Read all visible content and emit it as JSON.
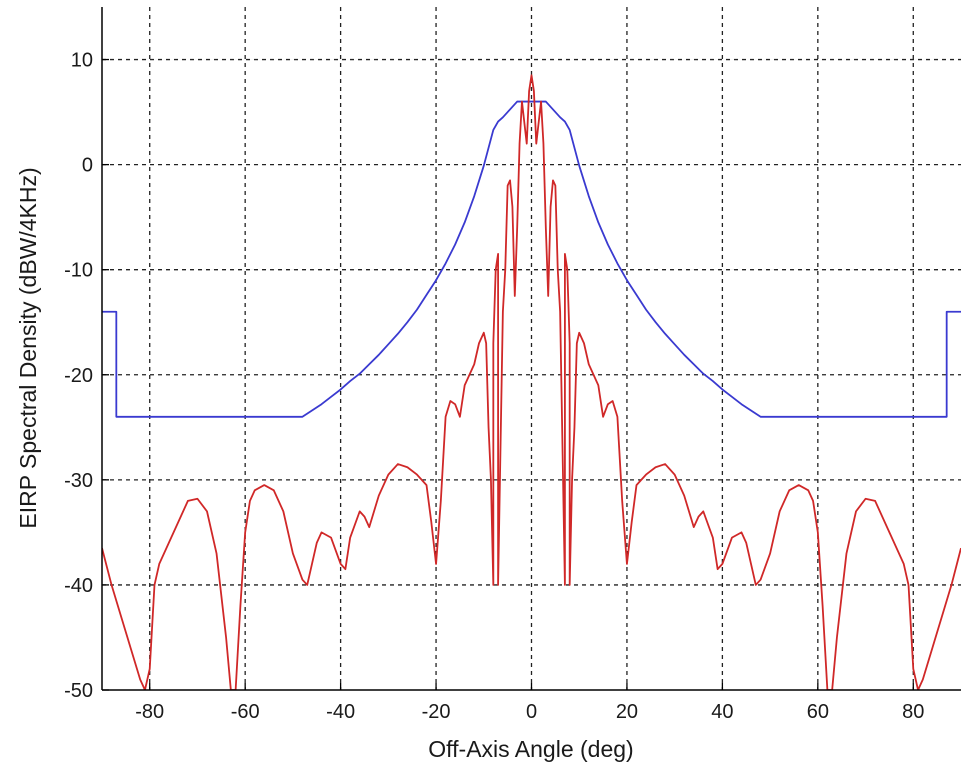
{
  "chart_data": {
    "type": "line",
    "title": "",
    "xlabel": "Off-Axis Angle (deg)",
    "ylabel": "EIRP Spectral Density (dBW/4KHz)",
    "xlim": [
      -90,
      90
    ],
    "ylim": [
      -50,
      15
    ],
    "xticks": [
      -80,
      -60,
      -40,
      -20,
      0,
      20,
      40,
      60,
      80
    ],
    "yticks": [
      10,
      0,
      -10,
      -20,
      -30,
      -40,
      -50
    ],
    "grid": true,
    "grid_style": "dotted",
    "series": [
      {
        "color": "#3a3ad0",
        "x": [
          -90,
          -87,
          -87,
          -48,
          -46,
          -44,
          -42,
          -40,
          -38,
          -36,
          -34,
          -32,
          -30,
          -28,
          -26,
          -24,
          -22,
          -20,
          -18,
          -16,
          -14,
          -12,
          -10,
          -9,
          -8,
          -7,
          -6,
          -5,
          -4,
          -3,
          3,
          4,
          5,
          6,
          7,
          8,
          9,
          10,
          12,
          14,
          16,
          18,
          20,
          22,
          24,
          26,
          28,
          30,
          32,
          34,
          36,
          38,
          40,
          42,
          44,
          46,
          48,
          87,
          87,
          90
        ],
        "y": [
          -14,
          -14,
          -24,
          -24,
          -23.4,
          -22.8,
          -22.1,
          -21.4,
          -20.6,
          -19.9,
          -19.0,
          -18.1,
          -17.1,
          -16.1,
          -15.0,
          -13.8,
          -12.4,
          -11.0,
          -9.4,
          -7.6,
          -5.5,
          -3.0,
          -0.1,
          1.6,
          3.3,
          4.1,
          4.5,
          5.0,
          5.5,
          6.0,
          6.0,
          5.5,
          5.0,
          4.5,
          4.1,
          3.3,
          1.6,
          -0.1,
          -3.0,
          -5.5,
          -7.6,
          -9.4,
          -11.0,
          -12.4,
          -13.8,
          -15.0,
          -16.1,
          -17.1,
          -18.1,
          -19.0,
          -19.9,
          -20.6,
          -21.4,
          -22.1,
          -22.8,
          -23.4,
          -24,
          -24,
          -14,
          -14
        ]
      },
      {
        "color": "#d02828",
        "x": [
          -90,
          -88,
          -86,
          -84,
          -82,
          -81,
          -80,
          -79,
          -78,
          -76,
          -74,
          -72,
          -70,
          -68,
          -66,
          -64,
          -63,
          -62,
          -61,
          -60,
          -59,
          -58,
          -56,
          -54,
          -52,
          -50,
          -48,
          -47,
          -46,
          -45,
          -44,
          -42,
          -40,
          -39,
          -38,
          -36,
          -35,
          -34,
          -32,
          -30,
          -28,
          -26,
          -24,
          -22,
          -21,
          -20,
          -19,
          -18,
          -17,
          -16,
          -15,
          -14,
          -13,
          -12,
          -11,
          -10,
          -9.5,
          -9,
          -8.5,
          -8,
          -8,
          -7.5,
          -7,
          -7,
          -6,
          -5.5,
          -5,
          -4.5,
          -4,
          -3.5,
          -3,
          -2.5,
          -2,
          -1.5,
          -1,
          -0.5,
          0,
          0.5,
          1,
          1.5,
          2,
          2.5,
          3,
          3.5,
          4,
          4.5,
          5,
          5.5,
          6,
          7,
          7,
          7.5,
          8,
          8,
          8.5,
          9,
          9.5,
          10,
          11,
          12,
          13,
          14,
          15,
          16,
          17,
          18,
          19,
          20,
          21,
          22,
          24,
          26,
          28,
          30,
          32,
          34,
          35,
          36,
          38,
          39,
          40,
          42,
          44,
          45,
          46,
          47,
          48,
          50,
          52,
          54,
          56,
          58,
          59,
          60,
          61,
          62,
          63,
          64,
          66,
          68,
          70,
          72,
          74,
          76,
          78,
          79,
          80,
          81,
          82,
          84,
          86,
          88,
          90
        ],
        "y": [
          -36.5,
          -40,
          -43,
          -46,
          -49,
          -50,
          -48,
          -40,
          -38,
          -36,
          -34,
          -32,
          -31.8,
          -33,
          -37,
          -45,
          -50,
          -50,
          -42,
          -35,
          -32,
          -31,
          -30.5,
          -31,
          -33,
          -37,
          -39.5,
          -40,
          -38,
          -36,
          -35,
          -35.5,
          -38,
          -38.5,
          -35.5,
          -33,
          -33.5,
          -34.5,
          -31.5,
          -29.5,
          -28.5,
          -28.8,
          -29.5,
          -30.5,
          -34,
          -38,
          -32,
          -24,
          -22.5,
          -22.8,
          -24,
          -21,
          -20,
          -19,
          -17,
          -16,
          -17,
          -25,
          -30,
          -40,
          -17,
          -10,
          -8.5,
          -40,
          -14,
          -10,
          -2,
          -1.5,
          -4,
          -12.5,
          -6,
          2,
          6,
          4,
          2,
          7,
          8.5,
          7,
          2,
          4,
          6,
          2,
          -6,
          -12.5,
          -4,
          -1.5,
          -2,
          -10,
          -14,
          -40,
          -8.5,
          -10,
          -17,
          -40,
          -30,
          -25,
          -17,
          -16,
          -17,
          -19,
          -20,
          -21,
          -24,
          -22.8,
          -22.5,
          -24,
          -32,
          -38,
          -34,
          -30.5,
          -29.5,
          -28.8,
          -28.5,
          -29.5,
          -31.5,
          -34.5,
          -33.5,
          -33,
          -35.5,
          -38.5,
          -38,
          -35.5,
          -35,
          -36,
          -38,
          -40,
          -39.5,
          -37,
          -33,
          -31,
          -30.5,
          -31,
          -32,
          -35,
          -42,
          -50,
          -50,
          -45,
          -37,
          -33,
          -31.8,
          -32,
          -34,
          -36,
          -38,
          -40,
          -48,
          -50,
          -49,
          -46,
          -43,
          -40,
          -36.5
        ]
      }
    ]
  }
}
